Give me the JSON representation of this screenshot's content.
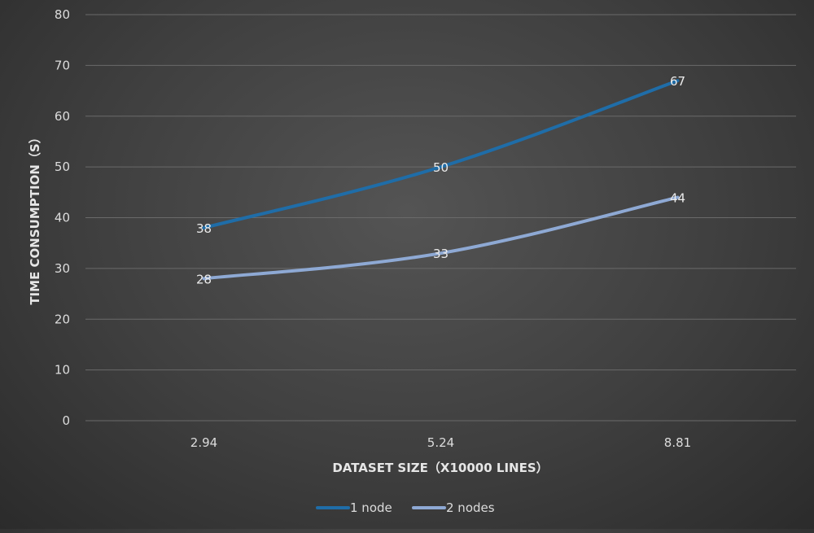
{
  "chart_data": {
    "type": "line",
    "title": "",
    "xlabel": "DATASET SIZE（X10000 LINES）",
    "ylabel": "TIME CONSUMPTION（S）",
    "categories": [
      "2.94",
      "5.24",
      "8.81"
    ],
    "ylim": [
      0,
      80
    ],
    "yticks": [
      0,
      10,
      20,
      30,
      40,
      50,
      60,
      70,
      80
    ],
    "grid": true,
    "legend_position": "bottom",
    "series": [
      {
        "name": "1 node",
        "values": [
          38,
          50,
          67
        ],
        "color": "#1f6da8"
      },
      {
        "name": "2 nodes",
        "values": [
          28,
          33,
          44
        ],
        "color": "#8ea9d4"
      }
    ]
  }
}
